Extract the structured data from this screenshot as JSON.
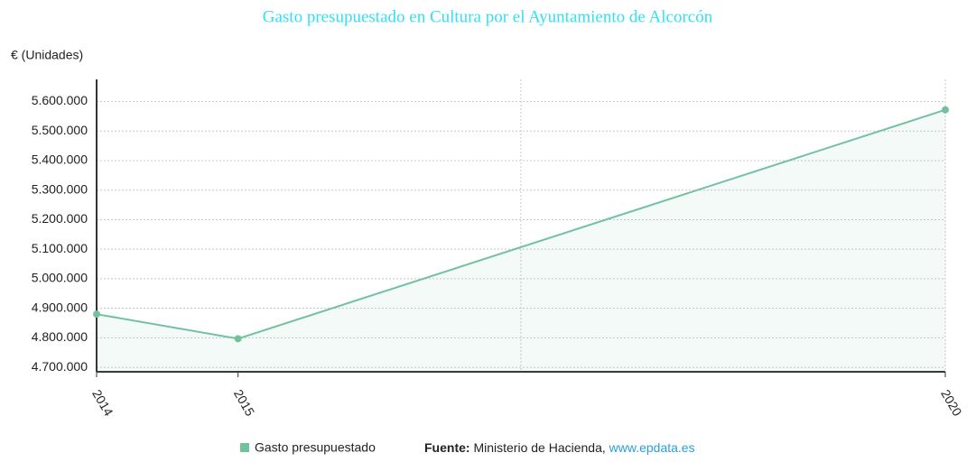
{
  "chart_data": {
    "type": "line",
    "title": "Gasto presupuestado en Cultura por el Ayuntamiento de Alcorcón",
    "y_label": "€ (Unidades)",
    "x": [
      2014,
      2015,
      2020
    ],
    "series": [
      {
        "name": "Gasto presupuestado",
        "color": "#72c2a0",
        "values": [
          4880000,
          4797000,
          5572000
        ]
      }
    ],
    "xlim": [
      2014,
      2020
    ],
    "xticks": [
      2014,
      2015,
      2020
    ],
    "xgrid": [
      2017,
      2020
    ],
    "ylim": [
      4685000,
      5675000
    ],
    "yticks": [
      {
        "value": 4700000,
        "label": "4.700.000"
      },
      {
        "value": 4800000,
        "label": "4.800.000"
      },
      {
        "value": 4900000,
        "label": "4.900.000"
      },
      {
        "value": 5000000,
        "label": "5.000.000"
      },
      {
        "value": 5100000,
        "label": "5.100.000"
      },
      {
        "value": 5200000,
        "label": "5.200.000"
      },
      {
        "value": 5300000,
        "label": "5.300.000"
      },
      {
        "value": 5400000,
        "label": "5.400.000"
      },
      {
        "value": 5500000,
        "label": "5.500.000"
      },
      {
        "value": 5600000,
        "label": "5.600.000"
      }
    ],
    "grid": true,
    "area": true,
    "source": {
      "label": "Fuente:",
      "text": "Ministerio de Hacienda,",
      "link": "www.epdata.es"
    }
  }
}
